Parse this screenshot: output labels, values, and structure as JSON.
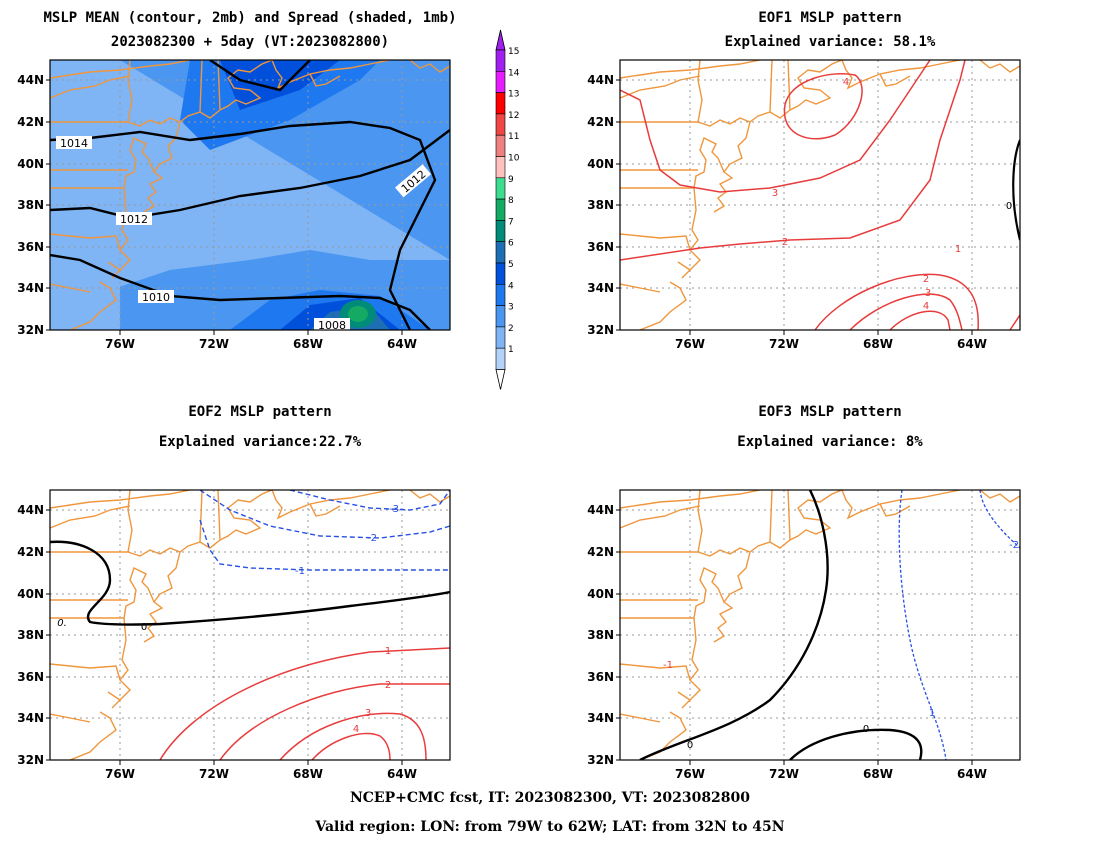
{
  "panels": [
    {
      "title_line1": "MSLP MEAN (contour, 2mb) and Spread (shaded, 1mb)",
      "title_line2": "2023082300 + 5day (VT:2023082800)",
      "contour_labels": [
        "1014",
        "1012",
        "1012",
        "1010",
        "1008"
      ]
    },
    {
      "title_line1": "EOF1 MSLP pattern",
      "title_line2": "Explained variance: 58.1%",
      "contour_labels": [
        "4",
        "3",
        "2",
        "1",
        "2",
        "3",
        "4",
        "0"
      ]
    },
    {
      "title_line1": "EOF2 MSLP pattern",
      "title_line2": "Explained variance:22.7%",
      "contour_labels": [
        "-3",
        "-2",
        "-1",
        "0",
        "0.",
        "1",
        "2",
        "3",
        "4"
      ]
    },
    {
      "title_line1": "EOF3 MSLP pattern",
      "title_line2": "Explained variance: 8%",
      "contour_labels": [
        "0",
        "0",
        "1",
        "-1",
        "-2"
      ]
    }
  ],
  "axes": {
    "lat_labels": [
      "44N",
      "42N",
      "40N",
      "38N",
      "36N",
      "34N",
      "32N"
    ],
    "lon_labels": [
      "76W",
      "72W",
      "68W",
      "64W"
    ],
    "lat_range": [
      32,
      45
    ],
    "lon_range": [
      -79,
      -62
    ]
  },
  "colorbar": {
    "labels": [
      "15",
      "14",
      "13",
      "12",
      "11",
      "10",
      "9",
      "8",
      "7",
      "6",
      "5",
      "4",
      "3",
      "2",
      "1"
    ],
    "colors": [
      "#a020f0",
      "#e61eff",
      "#ff0000",
      "#f04646",
      "#f08080",
      "#ffc0c0",
      "#3cdc91",
      "#14aa64",
      "#008c78",
      "#1e6eb4",
      "#0050dc",
      "#1e78f0",
      "#4a96f0",
      "#7fb4f5",
      "#b4d2fa"
    ]
  },
  "footer": {
    "line1": "NCEP+CMC fcst, IT: 2023082300, VT: 2023082800",
    "line2": "Valid region: LON: from 79W to 62W; LAT: from 32N to 45N"
  }
}
